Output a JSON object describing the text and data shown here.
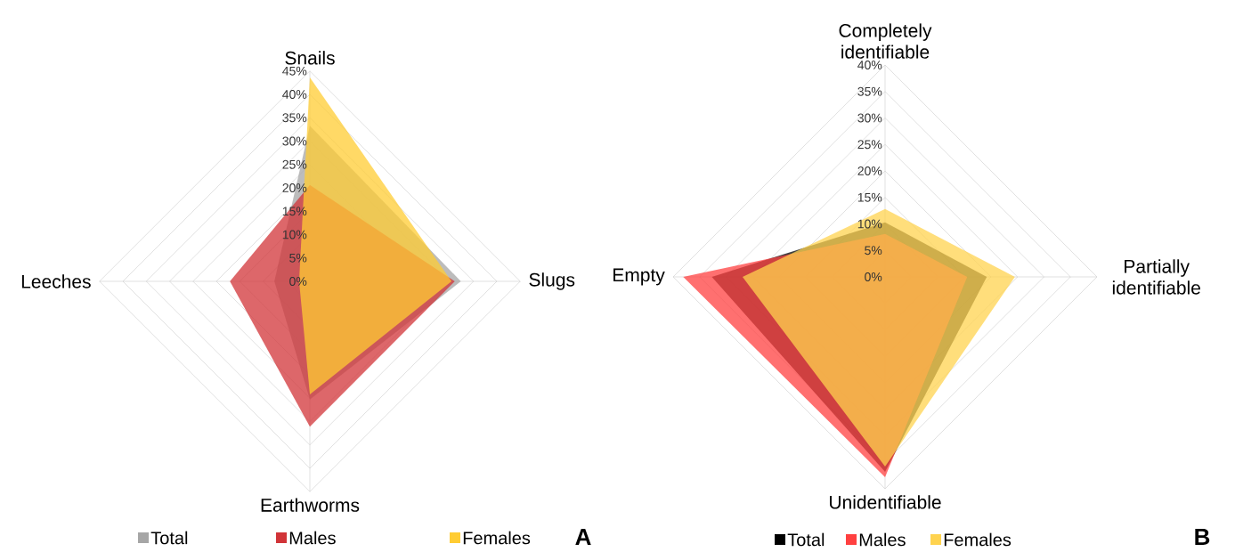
{
  "chart_data": [
    {
      "type": "radar",
      "categories": [
        "Snails",
        "Slugs",
        "Earthworms",
        "Leeches"
      ],
      "ylim": [
        0,
        45
      ],
      "yticks": [
        {
          "value": 0,
          "label": "0%"
        },
        {
          "value": 5,
          "label": "5%"
        },
        {
          "value": 10,
          "label": "10%"
        },
        {
          "value": 15,
          "label": "15%"
        },
        {
          "value": 20,
          "label": "20%"
        },
        {
          "value": 25,
          "label": "25%"
        },
        {
          "value": 30,
          "label": "30%"
        },
        {
          "value": 35,
          "label": "35%"
        },
        {
          "value": 40,
          "label": "40%"
        },
        {
          "value": 45,
          "label": "45%"
        }
      ],
      "grid": true,
      "legend": "bottom",
      "series": [
        {
          "name": "Total",
          "color": "#a6a6a6",
          "values": [
            33.3,
            32.3,
            25.3,
            7.6
          ]
        },
        {
          "name": "Males",
          "color": "#d13438",
          "values": [
            20.6,
            31,
            31.1,
            17.1
          ]
        },
        {
          "name": "Females",
          "color": "#ffcc33",
          "values": [
            43.6,
            30.3,
            24.2,
            2.3
          ]
        }
      ],
      "annotations": [
        "A"
      ]
    },
    {
      "type": "radar",
      "categories": [
        "Completely identifiable",
        "Partially identifiable",
        "Unidentifiable",
        "Empty"
      ],
      "ylim": [
        0,
        40
      ],
      "yticks": [
        {
          "value": 0,
          "label": "0%"
        },
        {
          "value": 5,
          "label": "5%"
        },
        {
          "value": 10,
          "label": "10%"
        },
        {
          "value": 15,
          "label": "15%"
        },
        {
          "value": 20,
          "label": "20%"
        },
        {
          "value": 25,
          "label": "25%"
        },
        {
          "value": 30,
          "label": "30%"
        },
        {
          "value": 35,
          "label": "35%"
        },
        {
          "value": 40,
          "label": "40%"
        }
      ],
      "grid": true,
      "legend": "bottom",
      "series": [
        {
          "name": "Total",
          "color": "#000000",
          "values": [
            10.3,
            19.2,
            36.8,
            32.7
          ]
        },
        {
          "name": "Males",
          "color": "#ff4040",
          "values": [
            8.1,
            15.5,
            37.8,
            38.1
          ]
        },
        {
          "name": "Females",
          "color": "#ffd34f",
          "values": [
            12.8,
            24.5,
            35.8,
            26.9
          ]
        }
      ],
      "annotations": [
        "B"
      ]
    }
  ]
}
